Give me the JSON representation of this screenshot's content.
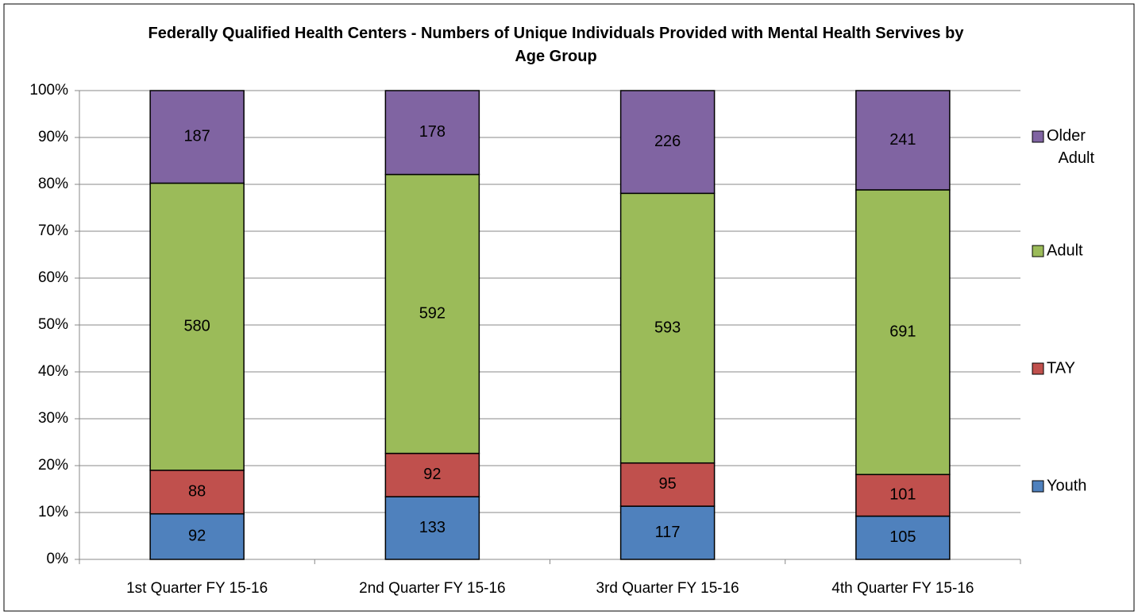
{
  "chart_data": {
    "type": "bar",
    "stacking": "percent",
    "title": "Federally Qualified Health Centers - Numbers of Unique Individuals Provided with Mental Health Servives by Age Group",
    "categories": [
      "1st Quarter FY 15-16",
      "2nd Quarter FY 15-16",
      "3rd Quarter FY 15-16",
      "4th Quarter FY 15-16"
    ],
    "series": [
      {
        "name": "Youth",
        "color": "#4f81bd",
        "values": [
          92,
          133,
          117,
          105
        ]
      },
      {
        "name": "TAY",
        "color": "#c0504d",
        "values": [
          88,
          92,
          95,
          101
        ]
      },
      {
        "name": "Adult",
        "color": "#9bbb59",
        "values": [
          580,
          592,
          593,
          691
        ]
      },
      {
        "name": "Older Adult",
        "color": "#8064a2",
        "values": [
          187,
          178,
          226,
          241
        ]
      }
    ],
    "ylim": [
      0,
      100
    ],
    "yticks": [
      {
        "value": 0,
        "label": "0%"
      },
      {
        "value": 10,
        "label": "10%"
      },
      {
        "value": 20,
        "label": "20%"
      },
      {
        "value": 30,
        "label": "30%"
      },
      {
        "value": 40,
        "label": "40%"
      },
      {
        "value": 50,
        "label": "50%"
      },
      {
        "value": 60,
        "label": "60%"
      },
      {
        "value": 70,
        "label": "70%"
      },
      {
        "value": 80,
        "label": "80%"
      },
      {
        "value": 90,
        "label": "90%"
      },
      {
        "value": 100,
        "label": "100%"
      }
    ],
    "grid": true,
    "legend": "right"
  }
}
